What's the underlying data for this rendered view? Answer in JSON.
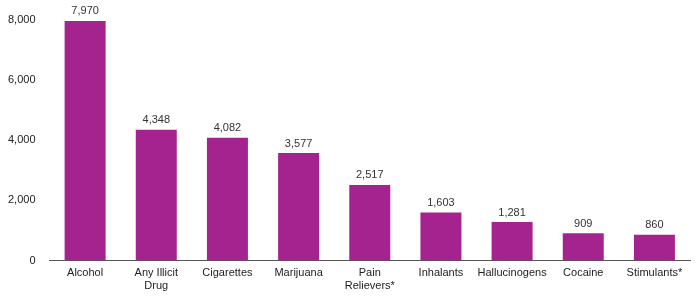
{
  "chart_data": {
    "type": "bar",
    "categories": [
      "Alcohol",
      "Any Illicit Drug",
      "Cigarettes",
      "Marijuana",
      "Pain Relievers*",
      "Inhalants",
      "Hallucinogens",
      "Cocaine",
      "Stimulants*"
    ],
    "values": [
      7970,
      4348,
      4082,
      3577,
      2517,
      1603,
      1281,
      909,
      860
    ],
    "value_labels": [
      "7,970",
      "4,348",
      "4,082",
      "3,577",
      "2,517",
      "1,603",
      "1,281",
      "909",
      "860"
    ],
    "color": "#a4238f",
    "ylim": [
      0,
      8000
    ],
    "yticks": [
      0,
      {
        "value": 2000,
        "label": "2,000"
      },
      {
        "value": 4000,
        "label": "4,000"
      },
      {
        "value": 6000,
        "label": "6,000"
      },
      {
        "value": 8000,
        "label": "8,000"
      }
    ],
    "grid": false,
    "data_labels": true
  }
}
